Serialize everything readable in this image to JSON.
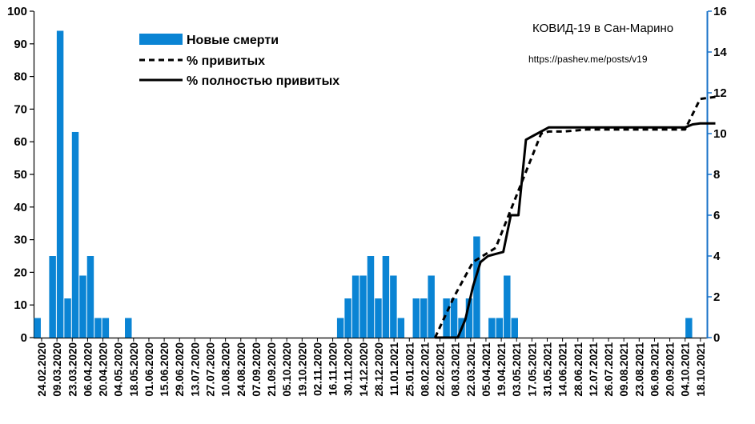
{
  "chart_data": {
    "type": "bar",
    "title": "КОВИД-19 в Сан-Марино",
    "subtitle": "https://pashev.me/posts/v19",
    "legend_position": "top-left",
    "grid": false,
    "colors": {
      "bar": "#0a84d4",
      "right_axis": "#1a73c8",
      "line": "#000000"
    },
    "left_axis": {
      "min": 0,
      "max": 100,
      "ticks": [
        0,
        10,
        20,
        30,
        40,
        50,
        60,
        70,
        80,
        90,
        100
      ]
    },
    "right_axis": {
      "min": 0,
      "max": 16,
      "ticks": [
        0,
        2,
        4,
        6,
        8,
        10,
        12,
        14,
        16
      ]
    },
    "x_tick_labels": [
      "24.02.2020",
      "09.03.2020",
      "23.03.2020",
      "06.04.2020",
      "20.04.2020",
      "04.05.2020",
      "18.05.2020",
      "01.06.2020",
      "15.06.2020",
      "29.06.2020",
      "13.07.2020",
      "27.07.2020",
      "10.08.2020",
      "24.08.2020",
      "07.09.2020",
      "21.09.2020",
      "05.10.2020",
      "19.10.2020",
      "02.11.2020",
      "16.11.2020",
      "30.11.2020",
      "14.12.2020",
      "28.12.2020",
      "11.01.2021",
      "25.01.2021",
      "08.02.2021",
      "22.02.2021",
      "08.03.2021",
      "22.03.2021",
      "05.04.2021",
      "19.04.2021",
      "03.05.2021",
      "17.05.2021",
      "31.05.2021",
      "14.06.2021",
      "28.06.2021",
      "12.07.2021",
      "26.07.2021",
      "09.08.2021",
      "23.08.2021",
      "06.09.2021",
      "20.09.2021",
      "04.10.2021",
      "18.10.2021"
    ],
    "series": [
      {
        "name": "Новые смерти",
        "kind": "bar",
        "axis": "left",
        "values": [
          6,
          0,
          25,
          94,
          12,
          63,
          19,
          25,
          6,
          6,
          0,
          0,
          6,
          0,
          0,
          0,
          0,
          0,
          0,
          0,
          0,
          0,
          0,
          0,
          0,
          0,
          0,
          0,
          0,
          0,
          0,
          0,
          0,
          0,
          0,
          0,
          0,
          0,
          0,
          0,
          6,
          12,
          19,
          19,
          25,
          12,
          25,
          19,
          6,
          0,
          12,
          12,
          19,
          0,
          12,
          12,
          6,
          12,
          31,
          0,
          6,
          6,
          19,
          6,
          0,
          0,
          0,
          0,
          0,
          0,
          0,
          0,
          0,
          0,
          0,
          0,
          0,
          0,
          0,
          0,
          0,
          0,
          0,
          0,
          0,
          0,
          6,
          0,
          0
        ]
      },
      {
        "name": "% привитых",
        "kind": "line",
        "style": "dashed",
        "axis": "right",
        "points": [
          [
            53,
            0
          ],
          [
            55.5,
            2
          ],
          [
            58,
            3.7
          ],
          [
            61,
            4.4
          ],
          [
            64,
            7.2
          ],
          [
            67,
            10
          ],
          [
            68,
            10.1
          ],
          [
            70,
            10.1
          ],
          [
            73,
            10.2
          ],
          [
            77,
            10.2
          ],
          [
            82,
            10.2
          ],
          [
            86,
            10.2
          ],
          [
            88,
            11.7
          ],
          [
            90,
            11.8
          ]
        ]
      },
      {
        "name": "% полностью привитых",
        "kind": "line",
        "style": "solid",
        "axis": "right",
        "points": [
          [
            53,
            0
          ],
          [
            56,
            0
          ],
          [
            57,
            0.9
          ],
          [
            58,
            2.5
          ],
          [
            59,
            3.7
          ],
          [
            60,
            4
          ],
          [
            61,
            4.1
          ],
          [
            62,
            4.2
          ],
          [
            63,
            6
          ],
          [
            64,
            6
          ],
          [
            65,
            9.7
          ],
          [
            66,
            9.9
          ],
          [
            68,
            10.3
          ],
          [
            70,
            10.3
          ],
          [
            86,
            10.3
          ],
          [
            87,
            10.45
          ],
          [
            88,
            10.5
          ],
          [
            90,
            10.5
          ]
        ]
      }
    ]
  }
}
